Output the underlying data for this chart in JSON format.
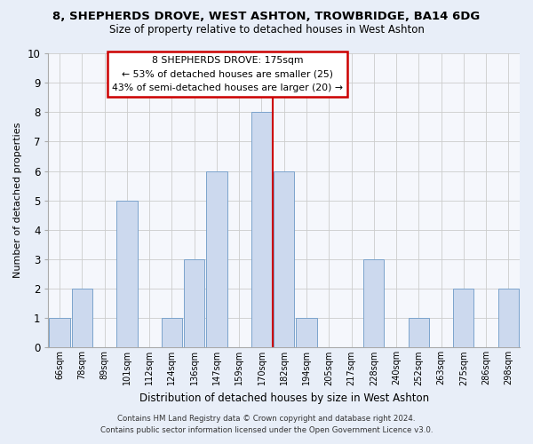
{
  "title": "8, SHEPHERDS DROVE, WEST ASHTON, TROWBRIDGE, BA14 6DG",
  "subtitle": "Size of property relative to detached houses in West Ashton",
  "xlabel": "Distribution of detached houses by size in West Ashton",
  "ylabel": "Number of detached properties",
  "bar_labels": [
    "66sqm",
    "78sqm",
    "89sqm",
    "101sqm",
    "112sqm",
    "124sqm",
    "136sqm",
    "147sqm",
    "159sqm",
    "170sqm",
    "182sqm",
    "194sqm",
    "205sqm",
    "217sqm",
    "228sqm",
    "240sqm",
    "252sqm",
    "263sqm",
    "275sqm",
    "286sqm",
    "298sqm"
  ],
  "bar_values": [
    1,
    2,
    0,
    5,
    0,
    1,
    3,
    6,
    0,
    8,
    6,
    1,
    0,
    0,
    3,
    0,
    1,
    0,
    2,
    0,
    2
  ],
  "bar_color": "#ccd9ee",
  "bar_edge_color": "#7ba3cc",
  "vline_x_index": 9.5,
  "vline_color": "#cc0000",
  "ylim": [
    0,
    10
  ],
  "yticks": [
    0,
    1,
    2,
    3,
    4,
    5,
    6,
    7,
    8,
    9,
    10
  ],
  "annotation_title": "8 SHEPHERDS DROVE: 175sqm",
  "annotation_line1": "← 53% of detached houses are smaller (25)",
  "annotation_line2": "43% of semi-detached houses are larger (20) →",
  "annotation_box_facecolor": "#ffffff",
  "annotation_box_edgecolor": "#cc0000",
  "footer_line1": "Contains HM Land Registry data © Crown copyright and database right 2024.",
  "footer_line2": "Contains public sector information licensed under the Open Government Licence v3.0.",
  "fig_facecolor": "#e8eef8",
  "plot_facecolor": "#f5f7fc"
}
